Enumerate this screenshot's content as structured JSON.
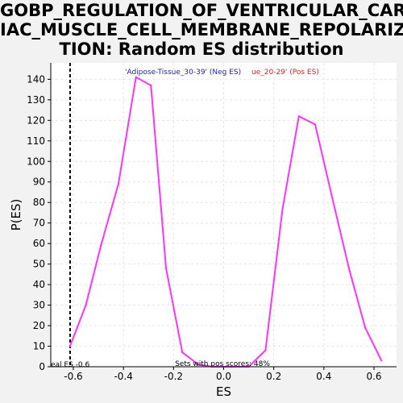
{
  "chart_data": {
    "type": "line",
    "title_lines": [
      "GOBP_REGULATION_OF_VENTRICULAR_CARD",
      "IAC_MUSCLE_CELL_MEMBRANE_REPOLARIZA",
      "TION: Random ES distribution"
    ],
    "xlabel": "ES",
    "ylabel": "P(ES)",
    "xlim": [
      -0.69,
      0.69
    ],
    "ylim": [
      0,
      148
    ],
    "xticks": [
      -0.6,
      -0.4,
      -0.2,
      0.0,
      0.2,
      0.4,
      0.6
    ],
    "xtick_labels": [
      "-0.6",
      "-0.4",
      "-0.2",
      "0.0",
      "0.2",
      "0.4",
      "0.6"
    ],
    "yticks": [
      0,
      10,
      20,
      30,
      40,
      50,
      60,
      70,
      80,
      90,
      100,
      110,
      120,
      130,
      140
    ],
    "grid": true,
    "series": [
      {
        "color": "#ff33ff",
        "x": [
          -0.613,
          -0.55,
          -0.49,
          -0.42,
          -0.35,
          -0.29,
          -0.23,
          -0.165,
          -0.1,
          -0.04,
          0.03,
          0.1,
          0.167,
          0.235,
          0.3,
          0.365,
          0.43,
          0.5,
          0.565,
          0.63
        ],
        "y": [
          10,
          30,
          59,
          89,
          141,
          137,
          48,
          7,
          1,
          0,
          0,
          0,
          8,
          77,
          122,
          118,
          84,
          48,
          19,
          3
        ]
      }
    ],
    "legend": [
      {
        "text": "'Adipose-Tissue_30-39' (Neg ES)",
        "color": "#2222aa"
      },
      {
        "text": "ue_20-29' (Pos ES)",
        "color": "#dd2222"
      }
    ],
    "real_es": -0.613,
    "real_es_label": "eal ES -0.6",
    "pos_scores_note": "Sets with pos scores: 48%"
  }
}
